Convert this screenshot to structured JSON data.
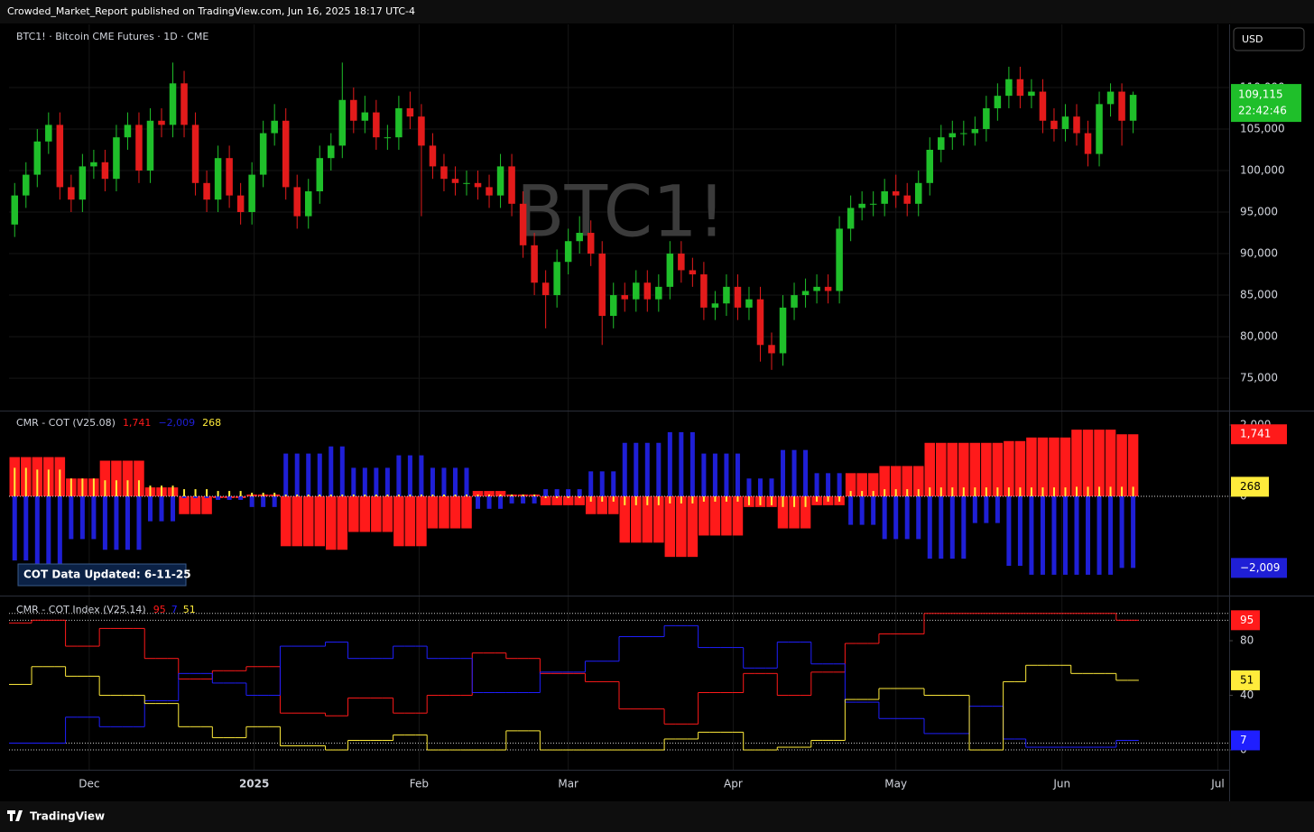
{
  "header": {
    "publisher": "Crowded_Market_Report published on TradingView.com, Jun 16, 2025 18:17 UTC-4",
    "symbol": "BTC1! · Bitcoin CME Futures · 1D · CME",
    "currency": "USD",
    "watermark": "BTC1!",
    "footer": "TradingView"
  },
  "chart_data": [
    {
      "type": "candlestick",
      "up_color": "#1fbf2a",
      "down_color": "#e31b1b",
      "xlim": [
        -0.5,
        107.5
      ],
      "xticks": [
        {
          "value": 6.6,
          "label": "Dec"
        },
        {
          "value": 21.2,
          "label": "2025"
        },
        {
          "value": 35.8,
          "label": "Feb"
        },
        {
          "value": 49,
          "label": "Mar"
        },
        {
          "value": 63.6,
          "label": "Apr"
        },
        {
          "value": 78,
          "label": "May"
        },
        {
          "value": 92.7,
          "label": "Jun"
        },
        {
          "value": 106.5,
          "label": "Jul"
        }
      ],
      "ylim": [
        71100,
        117600
      ],
      "yticks": [
        {
          "value": 110000,
          "label": "110,000"
        },
        {
          "value": 105000,
          "label": "105,000"
        },
        {
          "value": 100000,
          "label": "100,000"
        },
        {
          "value": 95000,
          "label": "95,000"
        },
        {
          "value": 90000,
          "label": "90,000"
        },
        {
          "value": 85000,
          "label": "85,000"
        },
        {
          "value": 80000,
          "label": "80,000"
        },
        {
          "value": 75000,
          "label": "75,000"
        }
      ],
      "grid": true,
      "last_label": {
        "value": 109115,
        "label": "109,115"
      },
      "countdown": "22:42:46",
      "open": [
        93500,
        97000,
        99500,
        103500,
        105500,
        98000,
        96500,
        100500,
        101000,
        99000,
        104000,
        105500,
        100000,
        106000,
        105500,
        110500,
        105500,
        98500,
        96500,
        101500,
        97000,
        95000,
        99500,
        104500,
        106000,
        98000,
        94500,
        97500,
        101500,
        103000,
        108500,
        106000,
        107000,
        104000,
        104000,
        107500,
        106500,
        103000,
        100500,
        99000,
        98500,
        98500,
        98000,
        97000,
        100500,
        96000,
        91000,
        86500,
        85000,
        89000,
        91500,
        92500,
        90000,
        82500,
        85000,
        84500,
        86500,
        84500,
        86000,
        90000,
        88000,
        87500,
        83500,
        84000,
        86000,
        83500,
        84500,
        79000,
        78000,
        83500,
        85000,
        85500,
        86000,
        85500,
        93000,
        95500,
        96000,
        96000,
        97500,
        97000,
        96000,
        98500,
        102500,
        104000,
        104500,
        104500,
        105000,
        107500,
        109000,
        111000,
        109000,
        109500,
        106000,
        105000,
        106500,
        104500,
        102000,
        108000,
        109500,
        106000
      ],
      "high": [
        98500,
        101000,
        105000,
        107000,
        107000,
        99500,
        102000,
        102500,
        102500,
        105500,
        107000,
        107000,
        107500,
        107500,
        113000,
        112000,
        107000,
        100000,
        103000,
        103000,
        98500,
        101000,
        106000,
        108000,
        107500,
        99500,
        99000,
        103000,
        104500,
        113000,
        110000,
        109000,
        108500,
        105500,
        109000,
        109500,
        108000,
        104500,
        102000,
        100500,
        100000,
        100000,
        99500,
        102000,
        102000,
        97500,
        92500,
        88000,
        90500,
        93000,
        94500,
        94000,
        91500,
        86500,
        86500,
        88000,
        88000,
        87500,
        91500,
        91500,
        89500,
        89000,
        85500,
        87500,
        87500,
        86000,
        86000,
        80500,
        85000,
        86500,
        87000,
        87500,
        87500,
        94500,
        97000,
        97500,
        97500,
        99000,
        99500,
        98500,
        100000,
        104000,
        105500,
        106000,
        106000,
        106500,
        109000,
        110500,
        112500,
        112500,
        111000,
        111000,
        107500,
        108000,
        108000,
        106000,
        109500,
        110500,
        110500,
        109500
      ],
      "low": [
        92000,
        95500,
        98000,
        102000,
        96500,
        95000,
        95000,
        99000,
        97500,
        97500,
        102500,
        98500,
        98500,
        104000,
        104000,
        104000,
        97000,
        95000,
        95000,
        95500,
        93500,
        93500,
        98000,
        103000,
        96500,
        93000,
        93000,
        96000,
        100000,
        101500,
        104500,
        104500,
        102500,
        102500,
        102500,
        105000,
        94500,
        99000,
        97500,
        97000,
        97000,
        96500,
        95500,
        95500,
        94500,
        89500,
        85000,
        81000,
        83500,
        87500,
        90000,
        88500,
        79000,
        81000,
        83000,
        83000,
        83000,
        83000,
        84500,
        86500,
        86000,
        82000,
        82000,
        82500,
        82000,
        82000,
        77000,
        76000,
        76500,
        82000,
        83500,
        84000,
        84000,
        84000,
        91500,
        94000,
        94500,
        94500,
        95500,
        94500,
        94500,
        97000,
        101000,
        102500,
        103000,
        103000,
        103500,
        106000,
        107500,
        107500,
        107500,
        104500,
        103500,
        103500,
        103000,
        100500,
        100500,
        106500,
        103000,
        104500
      ],
      "close": [
        97000,
        99500,
        103500,
        105500,
        98000,
        96500,
        100500,
        101000,
        99000,
        104000,
        105500,
        100000,
        106000,
        105500,
        110500,
        105500,
        98500,
        96500,
        101500,
        97000,
        95000,
        99500,
        104500,
        106000,
        98000,
        94500,
        97500,
        101500,
        103000,
        108500,
        106000,
        107000,
        104000,
        104000,
        107500,
        106500,
        103000,
        100500,
        99000,
        98500,
        98500,
        98000,
        97000,
        100500,
        96000,
        91000,
        86500,
        85000,
        89000,
        91500,
        92500,
        90000,
        82500,
        85000,
        84500,
        86500,
        84500,
        86000,
        90000,
        88000,
        87500,
        83500,
        84000,
        86000,
        83500,
        84500,
        79000,
        78000,
        83500,
        85000,
        85500,
        86000,
        85500,
        93000,
        95500,
        96000,
        96000,
        97500,
        97000,
        96000,
        98500,
        102500,
        104000,
        104500,
        104500,
        105000,
        107500,
        109000,
        111000,
        109000,
        109500,
        106000,
        105000,
        106500,
        104500,
        102000,
        108000,
        109500,
        106000,
        109115
      ]
    },
    {
      "type": "bar",
      "title": "CMR - COT (V25.08)",
      "annotation": "COT Data Updated:  6-11-25",
      "ylim": [
        -2785,
        2380
      ],
      "yticks": [
        {
          "value": 2000,
          "label": "2,000"
        },
        0
      ],
      "zero_line": true,
      "series": [
        {
          "color": "#ff1a1a",
          "last_label": "1,741",
          "values": [
            1100,
            1100,
            1100,
            1100,
            1100,
            500,
            500,
            500,
            1000,
            1000,
            1000,
            1000,
            250,
            250,
            250,
            -500,
            -500,
            -500,
            -50,
            -50,
            -50,
            50,
            50,
            50,
            -1400,
            -1400,
            -1400,
            -1400,
            -1500,
            -1500,
            -1000,
            -1000,
            -1000,
            -1000,
            -1400,
            -1400,
            -1400,
            -900,
            -900,
            -900,
            -900,
            150,
            150,
            150,
            50,
            50,
            50,
            -250,
            -250,
            -250,
            -250,
            -500,
            -500,
            -500,
            -1300,
            -1300,
            -1300,
            -1300,
            -1700,
            -1700,
            -1700,
            -1100,
            -1100,
            -1100,
            -1100,
            -300,
            -300,
            -300,
            -900,
            -900,
            -900,
            -250,
            -250,
            -250,
            650,
            650,
            650,
            850,
            850,
            850,
            850,
            1500,
            1500,
            1500,
            1500,
            1500,
            1500,
            1500,
            1550,
            1550,
            1650,
            1650,
            1650,
            1650,
            1870,
            1870,
            1870,
            1870,
            1741,
            1741
          ]
        },
        {
          "color": "#1f1fd6",
          "last_label": "−2,009",
          "values": [
            -1800,
            -1800,
            -1900,
            -1900,
            -1900,
            -1200,
            -1200,
            -1200,
            -1500,
            -1500,
            -1500,
            -1500,
            -700,
            -700,
            -700,
            -50,
            -50,
            -50,
            -100,
            -100,
            -100,
            -300,
            -300,
            -300,
            1200,
            1200,
            1200,
            1200,
            1400,
            1400,
            800,
            800,
            800,
            800,
            1150,
            1150,
            1150,
            800,
            800,
            800,
            800,
            -350,
            -350,
            -350,
            -200,
            -200,
            -200,
            200,
            200,
            200,
            200,
            700,
            700,
            700,
            1500,
            1500,
            1500,
            1500,
            1800,
            1800,
            1800,
            1200,
            1200,
            1200,
            1200,
            500,
            500,
            500,
            1300,
            1300,
            1300,
            650,
            650,
            650,
            -800,
            -800,
            -800,
            -1200,
            -1200,
            -1200,
            -1200,
            -1750,
            -1750,
            -1750,
            -1750,
            -750,
            -750,
            -750,
            -1950,
            -1950,
            -2200,
            -2200,
            -2200,
            -2200,
            -2200,
            -2200,
            -2200,
            -2200,
            -2009,
            -2009
          ]
        },
        {
          "color": "#ffeb3b",
          "last_label": "268",
          "values": [
            800,
            800,
            750,
            750,
            750,
            500,
            500,
            500,
            450,
            450,
            450,
            450,
            300,
            300,
            300,
            200,
            200,
            200,
            150,
            150,
            150,
            100,
            100,
            100,
            50,
            50,
            50,
            50,
            50,
            50,
            50,
            50,
            50,
            50,
            50,
            50,
            50,
            50,
            50,
            50,
            50,
            50,
            50,
            50,
            50,
            50,
            50,
            -50,
            -50,
            -50,
            -50,
            -150,
            -150,
            -150,
            -250,
            -250,
            -250,
            -250,
            -200,
            -200,
            -200,
            -150,
            -150,
            -150,
            -150,
            -250,
            -250,
            -250,
            -300,
            -300,
            -300,
            -150,
            -150,
            -150,
            150,
            150,
            150,
            200,
            200,
            200,
            200,
            250,
            250,
            250,
            250,
            250,
            250,
            250,
            250,
            250,
            250,
            250,
            250,
            250,
            268,
            268,
            268,
            268,
            268,
            268
          ]
        }
      ]
    },
    {
      "type": "step",
      "title": "CMR - COT Index (V25.14)",
      "ylim": [
        -14.5,
        112.4
      ],
      "yticks": [
        80,
        40,
        0
      ],
      "hlines": [
        100,
        95,
        5,
        0
      ],
      "series": [
        {
          "color": "#ff1a1a",
          "values": [
            93,
            93,
            95,
            95,
            95,
            76,
            76,
            76,
            89,
            89,
            89,
            89,
            67,
            67,
            67,
            52,
            52,
            52,
            58,
            58,
            58,
            61,
            61,
            61,
            27,
            27,
            27,
            27,
            25,
            25,
            38,
            38,
            38,
            38,
            27,
            27,
            27,
            40,
            40,
            40,
            40,
            71,
            71,
            71,
            67,
            67,
            67,
            56,
            56,
            56,
            56,
            50,
            50,
            50,
            30,
            30,
            30,
            30,
            19,
            19,
            19,
            42,
            42,
            42,
            42,
            56,
            56,
            56,
            40,
            40,
            40,
            57,
            57,
            57,
            78,
            78,
            78,
            85,
            85,
            85,
            85,
            100,
            100,
            100,
            100,
            100,
            100,
            100,
            100,
            100,
            100,
            100,
            100,
            100,
            100,
            100,
            100,
            100,
            95,
            95
          ]
        },
        {
          "color": "#1f1fff",
          "values": [
            5,
            5,
            5,
            5,
            5,
            24,
            24,
            24,
            17,
            17,
            17,
            17,
            36,
            36,
            36,
            56,
            56,
            56,
            49,
            49,
            49,
            40,
            40,
            40,
            76,
            76,
            76,
            76,
            79,
            79,
            67,
            67,
            67,
            67,
            76,
            76,
            76,
            67,
            67,
            67,
            67,
            42,
            42,
            42,
            42,
            42,
            42,
            57,
            57,
            57,
            57,
            65,
            65,
            65,
            83,
            83,
            83,
            83,
            91,
            91,
            91,
            75,
            75,
            75,
            75,
            60,
            60,
            60,
            79,
            79,
            79,
            63,
            63,
            63,
            35,
            35,
            35,
            23,
            23,
            23,
            23,
            12,
            12,
            12,
            12,
            32,
            32,
            32,
            8,
            8,
            2,
            2,
            2,
            2,
            2,
            2,
            2,
            2,
            7,
            7
          ]
        },
        {
          "color": "#ffeb3b",
          "values": [
            48,
            48,
            61,
            61,
            61,
            54,
            54,
            54,
            40,
            40,
            40,
            40,
            34,
            34,
            34,
            17,
            17,
            17,
            9,
            9,
            9,
            17,
            17,
            17,
            3,
            3,
            3,
            3,
            0,
            0,
            7,
            7,
            7,
            7,
            11,
            11,
            11,
            0,
            0,
            0,
            0,
            0,
            0,
            0,
            14,
            14,
            14,
            0,
            0,
            0,
            0,
            0,
            0,
            0,
            0,
            0,
            0,
            0,
            8,
            8,
            8,
            13,
            13,
            13,
            13,
            0,
            0,
            0,
            2,
            2,
            2,
            7,
            7,
            7,
            37,
            37,
            37,
            45,
            45,
            45,
            45,
            40,
            40,
            40,
            40,
            0,
            0,
            0,
            50,
            50,
            62,
            62,
            62,
            62,
            56,
            56,
            56,
            56,
            51,
            51
          ]
        }
      ]
    }
  ]
}
